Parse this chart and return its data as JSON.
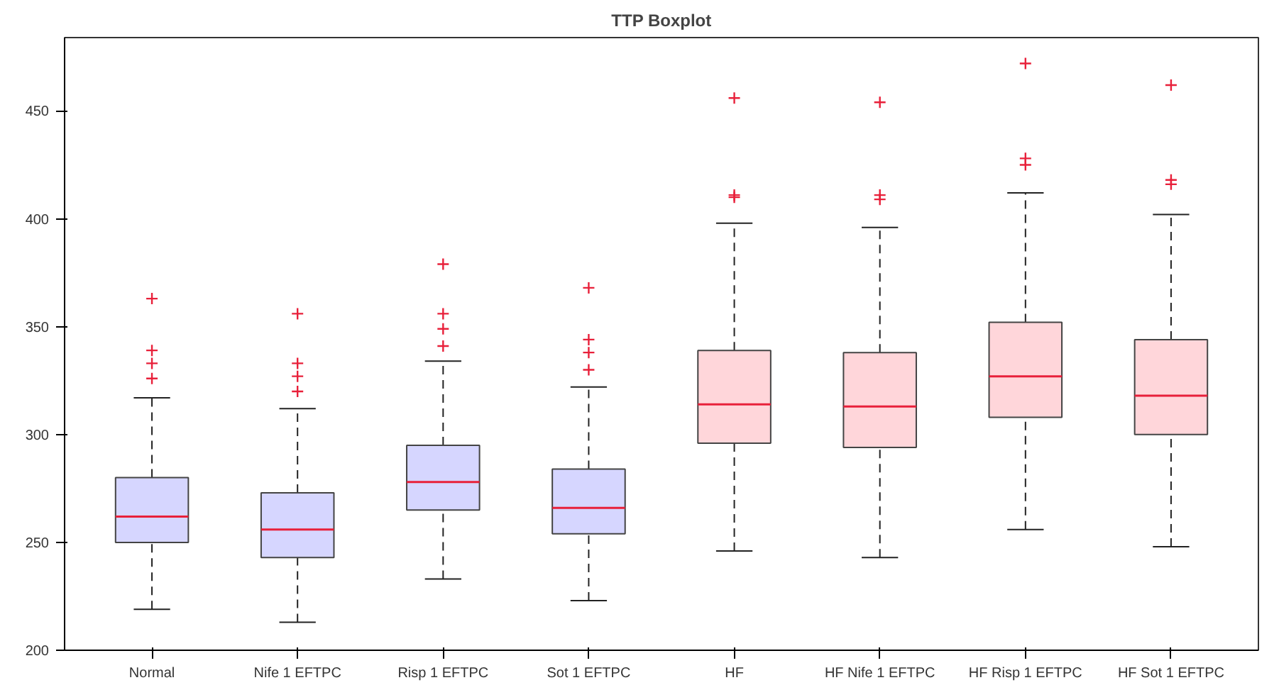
{
  "chart_data": {
    "type": "box",
    "title": "TTP Boxplot",
    "categories": [
      "Normal",
      "Nife 1 EFTPC",
      "Risp 1 EFTPC",
      "Sot 1 EFTPC",
      "HF",
      "HF Nife 1 EFTPC",
      "HF Risp 1 EFTPC",
      "HF Sot 1 EFTPC"
    ],
    "colors": [
      "#d6d6ff",
      "#d6d6ff",
      "#d6d6ff",
      "#d6d6ff",
      "#ffd6da",
      "#ffd6da",
      "#ffd6da",
      "#ffd6da"
    ],
    "boxes": [
      {
        "low": 219,
        "q1": 250,
        "median": 262,
        "q3": 280,
        "high": 317,
        "outliers": [
          363,
          339,
          333,
          326
        ]
      },
      {
        "low": 213,
        "q1": 243,
        "median": 256,
        "q3": 273,
        "high": 312,
        "outliers": [
          356,
          333,
          327,
          320
        ]
      },
      {
        "low": 233,
        "q1": 265,
        "median": 278,
        "q3": 295,
        "high": 334,
        "outliers": [
          379,
          356,
          349,
          341
        ]
      },
      {
        "low": 223,
        "q1": 254,
        "median": 266,
        "q3": 284,
        "high": 322,
        "outliers": [
          368,
          344,
          338,
          330
        ]
      },
      {
        "low": 246,
        "q1": 296,
        "median": 314,
        "q3": 339,
        "high": 398,
        "outliers": [
          456,
          411,
          410
        ]
      },
      {
        "low": 243,
        "q1": 294,
        "median": 313,
        "q3": 338,
        "high": 396,
        "outliers": [
          454,
          411,
          409
        ]
      },
      {
        "low": 256,
        "q1": 308,
        "median": 327,
        "q3": 352,
        "high": 412,
        "outliers": [
          472,
          428,
          425
        ]
      },
      {
        "low": 248,
        "q1": 300,
        "median": 318,
        "q3": 344,
        "high": 402,
        "outliers": [
          462,
          418,
          416
        ]
      }
    ],
    "ylim": [
      200,
      484
    ],
    "yticks": [
      200,
      250,
      300,
      350,
      400,
      450
    ],
    "grid": false
  }
}
